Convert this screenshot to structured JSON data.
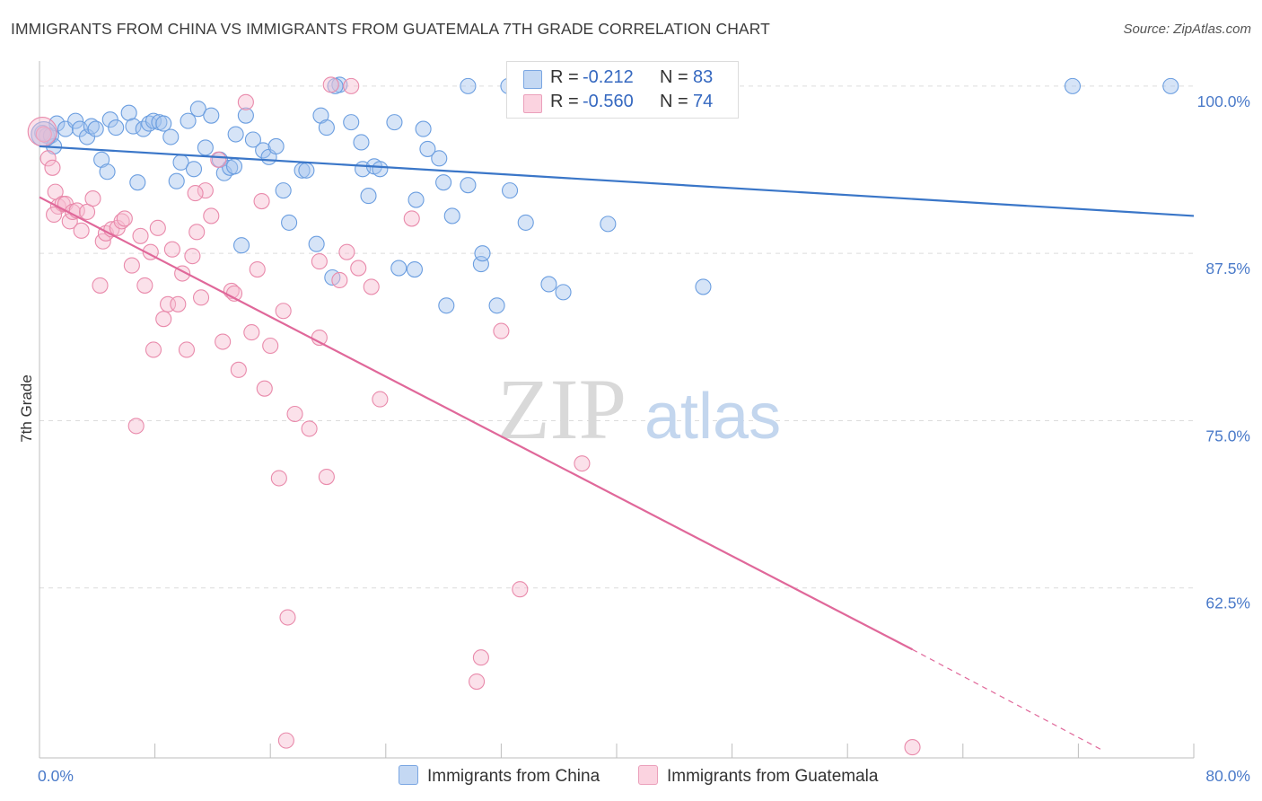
{
  "title": "IMMIGRANTS FROM CHINA VS IMMIGRANTS FROM GUATEMALA 7TH GRADE CORRELATION CHART",
  "source": "Source: ZipAtlas.com",
  "watermark": {
    "zip": "ZIP",
    "atlas": "atlas"
  },
  "legend": {
    "r_label": "R =",
    "n_label": "N =",
    "entries": [
      {
        "r": "-0.212",
        "n": "83",
        "color": "#a9c6ee",
        "border": "#6e9ee0"
      },
      {
        "r": "-0.560",
        "n": "74",
        "color": "#f7c0d2",
        "border": "#e995b2"
      }
    ]
  },
  "bottom_legend": [
    "Immigrants from China",
    "Immigrants from Guatemala"
  ],
  "colors": {
    "china": "#6b9ee0",
    "guatemala": "#e98aab",
    "china_line": "#3a76c8",
    "guatemala_line": "#e0689a",
    "grid": "#dcdcdc",
    "tick_text": "#4a7ac9"
  },
  "chart_data": {
    "type": "scatter",
    "title": "IMMIGRANTS FROM CHINA VS IMMIGRANTS FROM GUATEMALA 7TH GRADE CORRELATION CHART",
    "xlabel": "",
    "ylabel": "7th Grade",
    "xlim": [
      0,
      80
    ],
    "ylim": [
      49.8,
      101.2
    ],
    "x_tick_labels": [
      "0.0%",
      "80.0%"
    ],
    "y_ticks": [
      62.5,
      75.0,
      87.5,
      100.0
    ],
    "y_tick_labels": [
      "62.5%",
      "75.0%",
      "87.5%",
      "100.0%"
    ],
    "grid": true,
    "legend_position": "top-center",
    "series": [
      {
        "name": "Immigrants from China",
        "r": -0.212,
        "n": 83,
        "trend": {
          "x": [
            0,
            80
          ],
          "y": [
            95.5,
            90.3
          ]
        },
        "points": [
          [
            0.2,
            96.5
          ],
          [
            0.5,
            96.3
          ],
          [
            0.8,
            96.3
          ],
          [
            1.0,
            95.5
          ],
          [
            1.2,
            97.2
          ],
          [
            1.8,
            96.8
          ],
          [
            2.5,
            97.4
          ],
          [
            2.8,
            96.8
          ],
          [
            3.3,
            96.2
          ],
          [
            3.6,
            97.0
          ],
          [
            3.9,
            96.8
          ],
          [
            4.3,
            94.5
          ],
          [
            4.7,
            93.6
          ],
          [
            4.9,
            97.5
          ],
          [
            5.3,
            96.9
          ],
          [
            6.2,
            98.0
          ],
          [
            6.5,
            97.0
          ],
          [
            6.8,
            92.8
          ],
          [
            7.2,
            96.8
          ],
          [
            7.6,
            97.2
          ],
          [
            7.9,
            97.4
          ],
          [
            8.3,
            97.3
          ],
          [
            8.6,
            97.2
          ],
          [
            9.1,
            96.2
          ],
          [
            9.5,
            92.9
          ],
          [
            9.8,
            94.3
          ],
          [
            10.3,
            97.4
          ],
          [
            10.7,
            93.8
          ],
          [
            11.0,
            98.3
          ],
          [
            11.5,
            95.4
          ],
          [
            11.9,
            97.8
          ],
          [
            12.5,
            94.5
          ],
          [
            12.8,
            93.5
          ],
          [
            13.2,
            93.9
          ],
          [
            13.6,
            96.4
          ],
          [
            14.0,
            88.1
          ],
          [
            14.3,
            97.8
          ],
          [
            14.8,
            96.0
          ],
          [
            15.5,
            95.2
          ],
          [
            15.9,
            94.7
          ],
          [
            16.4,
            95.5
          ],
          [
            16.9,
            92.2
          ],
          [
            17.3,
            89.8
          ],
          [
            18.2,
            93.7
          ],
          [
            18.5,
            93.7
          ],
          [
            19.2,
            88.2
          ],
          [
            19.5,
            97.8
          ],
          [
            19.9,
            96.9
          ],
          [
            20.3,
            85.7
          ],
          [
            20.8,
            100.1
          ],
          [
            21.6,
            97.3
          ],
          [
            22.3,
            95.8
          ],
          [
            22.4,
            93.8
          ],
          [
            22.8,
            91.8
          ],
          [
            23.2,
            94.0
          ],
          [
            23.6,
            93.8
          ],
          [
            24.6,
            97.3
          ],
          [
            24.9,
            86.4
          ],
          [
            26.0,
            86.3
          ],
          [
            26.1,
            91.5
          ],
          [
            26.6,
            96.8
          ],
          [
            26.9,
            95.3
          ],
          [
            27.7,
            94.6
          ],
          [
            28.0,
            92.8
          ],
          [
            28.2,
            83.6
          ],
          [
            28.6,
            90.3
          ],
          [
            29.7,
            100.0
          ],
          [
            30.6,
            86.7
          ],
          [
            30.7,
            87.5
          ],
          [
            31.7,
            83.6
          ],
          [
            32.6,
            92.2
          ],
          [
            33.7,
            89.8
          ],
          [
            35.3,
            85.2
          ],
          [
            36.3,
            84.6
          ],
          [
            39.4,
            89.7
          ],
          [
            46.0,
            85.0
          ],
          [
            71.6,
            100.0
          ],
          [
            78.4,
            100.0
          ],
          [
            32.5,
            100.0
          ],
          [
            35.5,
            100.0
          ],
          [
            20.5,
            100.0
          ],
          [
            29.7,
            92.6
          ],
          [
            13.5,
            94.0
          ]
        ]
      },
      {
        "name": "Immigrants from Guatemala",
        "r": -0.56,
        "n": 74,
        "trend": {
          "x": [
            0,
            60.5
          ],
          "y": [
            91.7,
            57.9
          ]
        },
        "trend_dashed": {
          "x": [
            60.5,
            73.8
          ],
          "y": [
            57.9,
            50.3
          ]
        },
        "points": [
          [
            0.3,
            96.4
          ],
          [
            0.6,
            94.6
          ],
          [
            0.9,
            93.9
          ],
          [
            1.1,
            92.1
          ],
          [
            1.3,
            91.0
          ],
          [
            1.6,
            91.2
          ],
          [
            1.8,
            91.2
          ],
          [
            2.1,
            89.9
          ],
          [
            2.3,
            90.6
          ],
          [
            2.6,
            90.7
          ],
          [
            2.9,
            89.2
          ],
          [
            3.3,
            90.6
          ],
          [
            3.7,
            91.6
          ],
          [
            4.2,
            85.1
          ],
          [
            4.4,
            88.4
          ],
          [
            4.6,
            89.0
          ],
          [
            5.0,
            89.3
          ],
          [
            5.4,
            89.4
          ],
          [
            5.7,
            89.9
          ],
          [
            5.9,
            90.1
          ],
          [
            6.4,
            86.6
          ],
          [
            6.7,
            74.6
          ],
          [
            7.0,
            88.8
          ],
          [
            7.3,
            85.1
          ],
          [
            7.7,
            87.6
          ],
          [
            7.9,
            80.3
          ],
          [
            8.2,
            89.4
          ],
          [
            8.6,
            82.6
          ],
          [
            8.9,
            83.7
          ],
          [
            9.2,
            87.8
          ],
          [
            9.6,
            83.7
          ],
          [
            9.9,
            86.0
          ],
          [
            10.2,
            80.3
          ],
          [
            10.6,
            87.3
          ],
          [
            10.9,
            89.1
          ],
          [
            11.2,
            84.2
          ],
          [
            11.5,
            92.2
          ],
          [
            11.9,
            90.3
          ],
          [
            12.4,
            94.5
          ],
          [
            12.7,
            80.9
          ],
          [
            13.3,
            84.7
          ],
          [
            13.5,
            84.5
          ],
          [
            13.8,
            78.8
          ],
          [
            14.3,
            98.8
          ],
          [
            14.7,
            81.6
          ],
          [
            15.1,
            86.3
          ],
          [
            15.4,
            91.4
          ],
          [
            15.6,
            77.4
          ],
          [
            16.0,
            80.6
          ],
          [
            16.6,
            70.7
          ],
          [
            16.9,
            83.2
          ],
          [
            17.2,
            60.3
          ],
          [
            17.1,
            51.1
          ],
          [
            17.7,
            75.5
          ],
          [
            18.7,
            74.4
          ],
          [
            19.4,
            81.2
          ],
          [
            19.4,
            86.9
          ],
          [
            19.9,
            70.8
          ],
          [
            20.2,
            100.1
          ],
          [
            21.6,
            100.0
          ],
          [
            20.8,
            85.5
          ],
          [
            21.3,
            87.6
          ],
          [
            22.1,
            86.4
          ],
          [
            23.0,
            85.0
          ],
          [
            23.6,
            76.6
          ],
          [
            25.8,
            90.1
          ],
          [
            30.3,
            55.5
          ],
          [
            30.6,
            57.3
          ],
          [
            32.0,
            81.7
          ],
          [
            33.3,
            62.4
          ],
          [
            37.6,
            71.8
          ],
          [
            60.5,
            50.6
          ],
          [
            1.0,
            90.4
          ],
          [
            10.8,
            92.0
          ]
        ]
      }
    ]
  }
}
